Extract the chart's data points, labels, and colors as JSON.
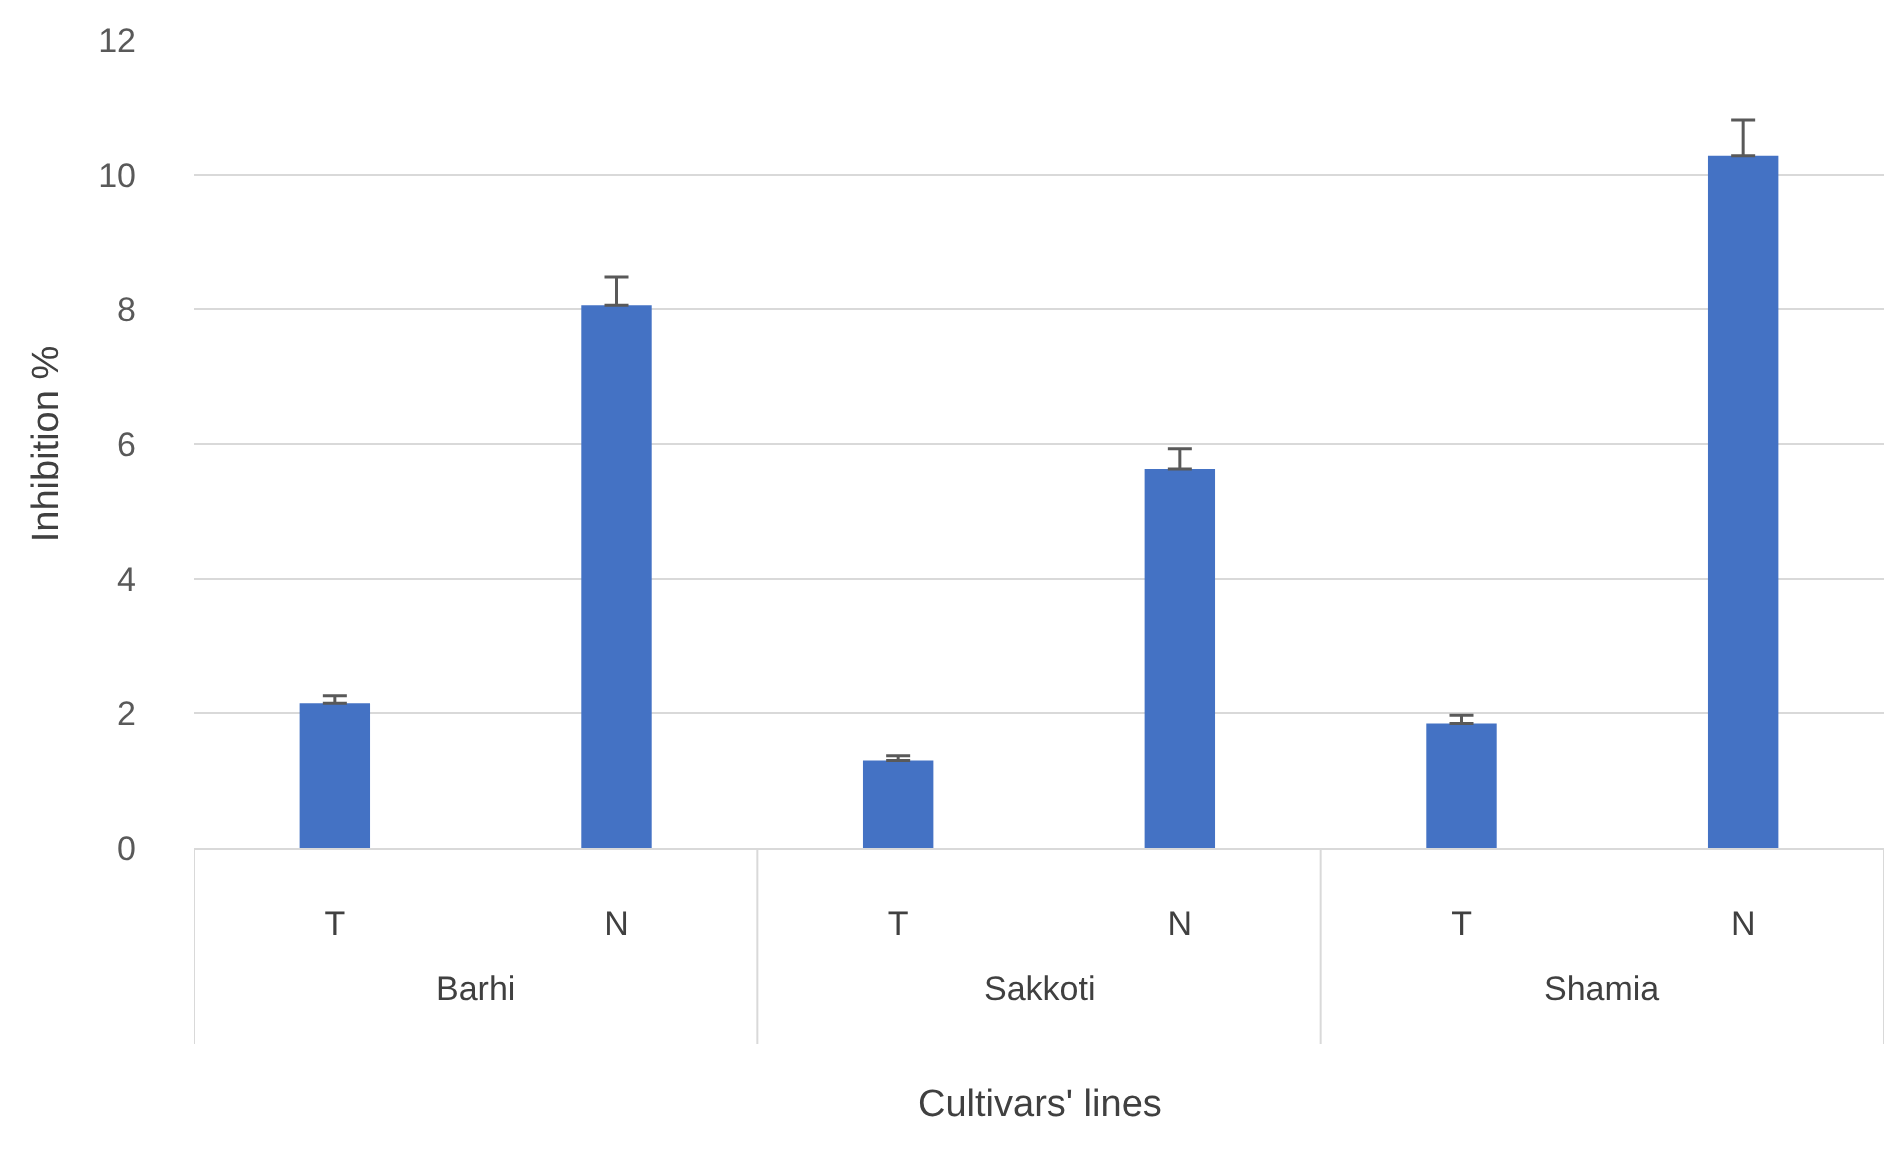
{
  "chart_data": {
    "type": "bar",
    "xlabel": "Cultivars' lines",
    "ylabel": "Inhibition %",
    "categories": [
      "T",
      "N",
      "T",
      "N",
      "T",
      "N"
    ],
    "annotations": [
      "Barhi",
      "Sakkoti",
      "Shamia"
    ],
    "values": [
      2.15,
      8.06,
      1.3,
      5.63,
      1.85,
      10.28
    ],
    "errors": [
      [
        2.15,
        2.26
      ],
      [
        8.06,
        8.48
      ],
      [
        1.3,
        1.37
      ],
      [
        5.63,
        5.93
      ],
      [
        1.85,
        1.97
      ],
      [
        10.28,
        10.81
      ]
    ],
    "color": "#4472c4",
    "ylim": [
      0,
      12
    ],
    "yticks": [
      0,
      2,
      4,
      6,
      8,
      10,
      12
    ],
    "grid": "y",
    "legend": false
  }
}
